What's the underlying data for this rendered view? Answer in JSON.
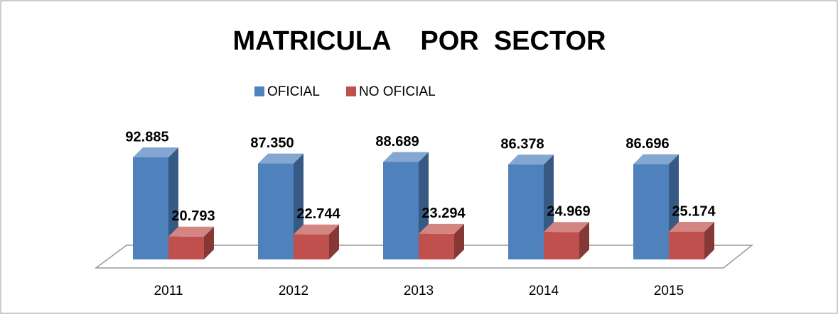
{
  "chart_data": {
    "type": "bar3d",
    "title": "MATRICULA    POR  SECTOR",
    "categories": [
      "2011",
      "2012",
      "2013",
      "2014",
      "2015"
    ],
    "series": [
      {
        "name": "OFICIAL",
        "color": "#4f81bd",
        "values": [
          92885,
          87350,
          88689,
          86378,
          86696
        ],
        "value_labels": [
          "92.885",
          "87.350",
          "88.689",
          "86.378",
          "86.696"
        ]
      },
      {
        "name": "NO OFICIAL",
        "color": "#c0504d",
        "values": [
          20793,
          22744,
          23294,
          24969,
          25174
        ],
        "value_labels": [
          "20.793",
          "22.744",
          "23.294",
          "24.969",
          "25.174"
        ]
      }
    ],
    "legend": "top"
  }
}
